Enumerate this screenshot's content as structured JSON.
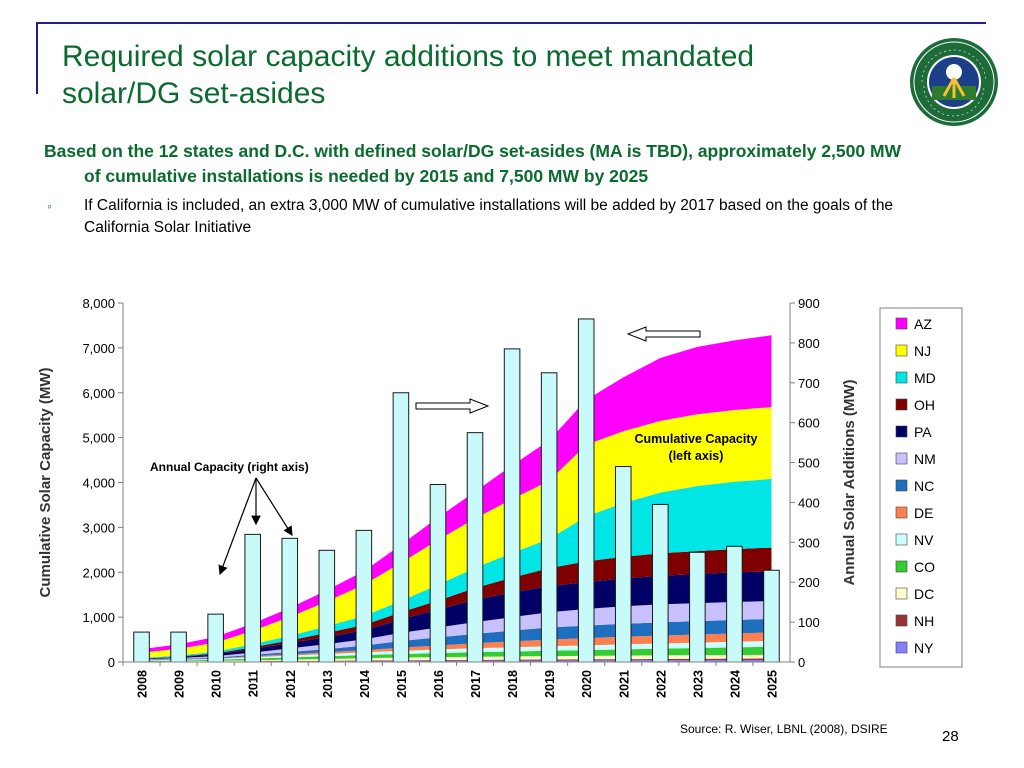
{
  "slide": {
    "title": "Required solar capacity additions to meet mandated solar/DG set-asides",
    "main_point": "Based on the 12 states and D.C. with defined solar/DG set-asides (MA is TBD), approximately 2,500 MW of cumulative installations is needed by 2015 and 7,500 MW by 2025",
    "sub_point": "If California is included, an extra 3,000 MW of cumulative installations will be added by 2017 based on the goals of the California Solar Initiative",
    "source": "Source: R. Wiser, LBNL (2008), DSIRE",
    "page_number": "28"
  },
  "colors": {
    "title": "#0a6b2e",
    "frame": "#1f1f8f",
    "bars": "#c8fafa"
  },
  "chart_data": {
    "type": "area",
    "xlabel": "",
    "ylabel": "Cumulative Solar Capacity (MW)",
    "y2label": "Annual Solar Additions (MW)",
    "ylim": [
      0,
      8000
    ],
    "y2lim": [
      0,
      900
    ],
    "yticks": [
      "0",
      "1,000",
      "2,000",
      "3,000",
      "4,000",
      "5,000",
      "6,000",
      "7,000",
      "8,000"
    ],
    "y2ticks": [
      "0",
      "100",
      "200",
      "300",
      "400",
      "500",
      "600",
      "700",
      "800",
      "900"
    ],
    "grid": false,
    "legend_position": "right",
    "categories": [
      "2008",
      "2009",
      "2010",
      "2011",
      "2012",
      "2013",
      "2014",
      "2015",
      "2016",
      "2017",
      "2018",
      "2019",
      "2020",
      "2021",
      "2022",
      "2023",
      "2024",
      "2025"
    ],
    "series": [
      {
        "name": "NY",
        "color": "#8080ff",
        "values": [
          5,
          5,
          8,
          12,
          15,
          18,
          22,
          25,
          28,
          30,
          32,
          34,
          36,
          38,
          40,
          42,
          44,
          46
        ]
      },
      {
        "name": "NH",
        "color": "#993333",
        "values": [
          2,
          3,
          4,
          6,
          8,
          10,
          12,
          14,
          16,
          18,
          20,
          22,
          24,
          26,
          28,
          30,
          32,
          34
        ]
      },
      {
        "name": "DC",
        "color": "#ffffcc",
        "values": [
          5,
          8,
          12,
          20,
          30,
          40,
          50,
          60,
          65,
          70,
          72,
          74,
          76,
          78,
          80,
          80,
          80,
          80
        ]
      },
      {
        "name": "CO",
        "color": "#33cc33",
        "values": [
          10,
          15,
          25,
          40,
          50,
          60,
          70,
          80,
          90,
          100,
          110,
          120,
          130,
          140,
          150,
          160,
          170,
          180
        ]
      },
      {
        "name": "NV",
        "color": "#ccffff",
        "values": [
          10,
          15,
          20,
          30,
          40,
          50,
          60,
          70,
          80,
          90,
          95,
          100,
          105,
          110,
          115,
          120,
          125,
          130
        ]
      },
      {
        "name": "DE",
        "color": "#ff7f50",
        "values": [
          5,
          8,
          12,
          20,
          30,
          40,
          50,
          70,
          90,
          110,
          130,
          150,
          160,
          170,
          175,
          180,
          185,
          190
        ]
      },
      {
        "name": "NC",
        "color": "#1f6fc0",
        "values": [
          10,
          15,
          20,
          30,
          50,
          70,
          100,
          150,
          180,
          210,
          240,
          270,
          280,
          290,
          295,
          300,
          300,
          300
        ]
      },
      {
        "name": "NM",
        "color": "#c8c0ff",
        "values": [
          10,
          20,
          30,
          50,
          80,
          110,
          140,
          180,
          220,
          260,
          300,
          340,
          370,
          390,
          400,
          400,
          400,
          400
        ]
      },
      {
        "name": "PA",
        "color": "#000066",
        "values": [
          10,
          20,
          40,
          80,
          120,
          160,
          200,
          300,
          400,
          500,
          550,
          580,
          600,
          620,
          640,
          650,
          660,
          660
        ]
      },
      {
        "name": "OH",
        "color": "#800000",
        "values": [
          5,
          10,
          20,
          40,
          60,
          90,
          120,
          160,
          200,
          260,
          330,
          400,
          460,
          480,
          500,
          510,
          520,
          530
        ]
      },
      {
        "name": "MD",
        "color": "#00e5e5",
        "values": [
          15,
          25,
          40,
          70,
          100,
          150,
          200,
          250,
          350,
          450,
          550,
          650,
          1000,
          1200,
          1350,
          1450,
          1500,
          1530
        ]
      },
      {
        "name": "NJ",
        "color": "#ffff00",
        "values": [
          120,
          150,
          200,
          300,
          420,
          550,
          700,
          850,
          1000,
          1100,
          1200,
          1300,
          1600,
          1600,
          1600,
          1600,
          1600,
          1600
        ]
      },
      {
        "name": "AZ",
        "color": "#ff00ff",
        "values": [
          80,
          100,
          130,
          160,
          200,
          250,
          300,
          400,
          500,
          600,
          750,
          900,
          1000,
          1200,
          1400,
          1500,
          1550,
          1600
        ]
      }
    ],
    "bars": {
      "name": "Annual Capacity (right axis)",
      "axis": "right",
      "values": [
        75,
        75,
        120,
        320,
        310,
        280,
        330,
        675,
        445,
        575,
        785,
        725,
        860,
        490,
        395,
        275,
        290,
        230
      ]
    },
    "annotations": [
      {
        "text": "Annual Capacity (right axis)"
      },
      {
        "text": "Cumulative Capacity (left axis)"
      }
    ]
  }
}
